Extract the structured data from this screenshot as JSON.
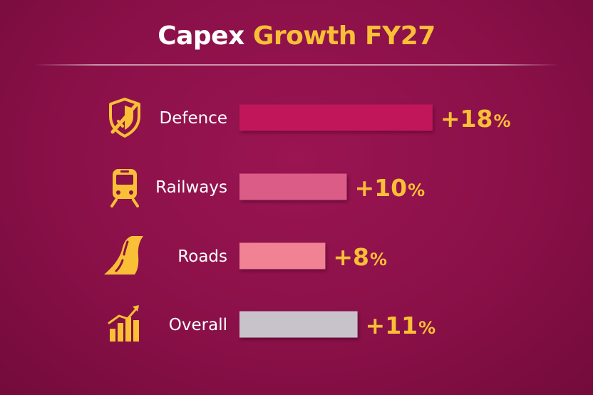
{
  "title": {
    "part1": "Capex",
    "part2": "Growth FY27"
  },
  "colors": {
    "background": "#8a1048",
    "accent": "#f9bf36",
    "text": "#ffffff"
  },
  "chart_data": {
    "type": "bar",
    "orientation": "horizontal",
    "title": "Capex Growth FY27",
    "categories": [
      "Defence",
      "Railways",
      "Roads",
      "Overall"
    ],
    "values": [
      18,
      10,
      8,
      11
    ],
    "value_labels": [
      "+18%",
      "+10%",
      "+8%",
      "+11%"
    ],
    "unit": "%",
    "bar_colors": [
      "#c2175a",
      "#dc5c88",
      "#f18294",
      "#c8c3cb"
    ],
    "icons": [
      "shield-sword-icon",
      "train-icon",
      "road-icon",
      "growth-chart-icon"
    ],
    "grid": false,
    "legend": "none"
  }
}
